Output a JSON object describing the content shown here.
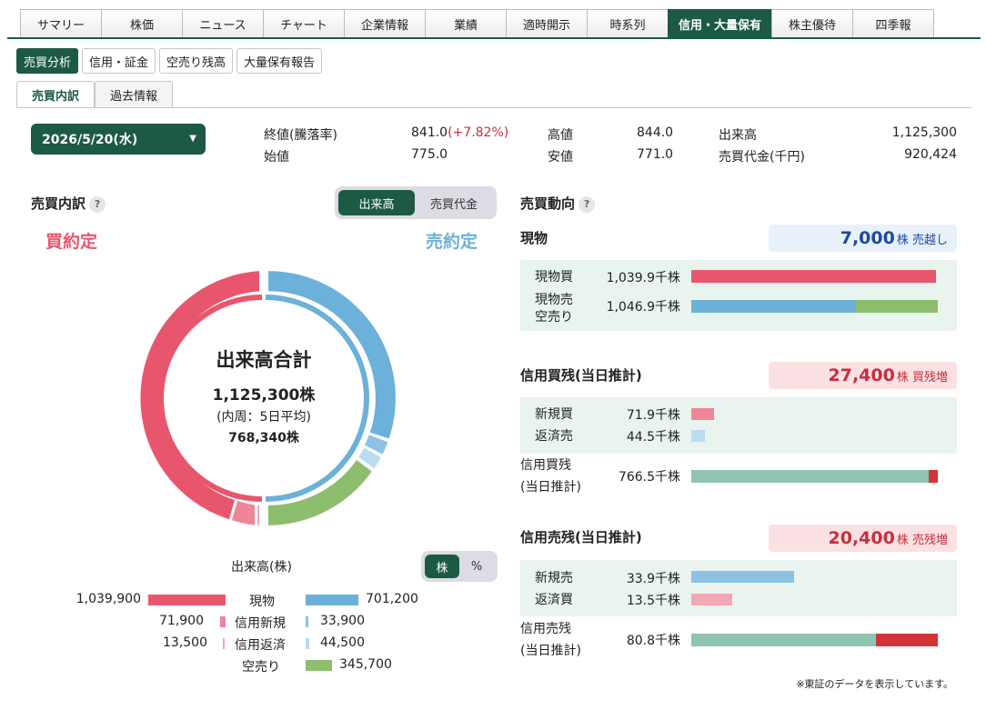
{
  "top_tabs": [
    "サマリー",
    "株価",
    "ニュース",
    "チャート",
    "企業情報",
    "業績",
    "適時開示",
    "時系列",
    "信用・大量保有",
    "株主優待",
    "四季報"
  ],
  "sub_tabs": [
    "売買分析",
    "信用・証金",
    "空売り残高",
    "大量保有報告"
  ],
  "third_tabs": [
    "売買内訳",
    "過去情報"
  ],
  "date": "2026/5/20(水)",
  "prices": {
    "close_label": "終値(騰落率)",
    "close_value": "841.0",
    "close_change": "(+7.82%)",
    "open_label": "始値",
    "open_value": "775.0",
    "high_label": "高値",
    "high_value": "844.0",
    "low_label": "安値",
    "low_value": "771.0",
    "volume_label": "出来高",
    "volume_value": "1,125,300",
    "turnover_label": "売買代金(千円)",
    "turnover_value": "920,424"
  },
  "breakdown": {
    "title": "売買内訳",
    "help": "?",
    "toggle": [
      "出来高",
      "売買代金"
    ],
    "buy_label": "買約定",
    "sell_label": "売約定",
    "center_title": "出来高合計",
    "center_total": "1,125,300株",
    "center_sub": "(内周：5日平均)",
    "center_avg": "768,340株"
  },
  "legend": {
    "title": "出来高(株)",
    "toggle": [
      "株",
      "%"
    ],
    "rows": [
      {
        "label": "現物",
        "buy": "1,039,900",
        "sell": "701,200"
      },
      {
        "label": "信用新規",
        "buy": "71,900",
        "sell": "33,900"
      },
      {
        "label": "信用返済",
        "buy": "13,500",
        "sell": "44,500"
      },
      {
        "label": "空売り",
        "sell": "345,700"
      }
    ]
  },
  "dynamics": {
    "title": "売買動向",
    "help": "?",
    "spot": {
      "title": "現物",
      "badge_value": "7,000",
      "badge_unit": "株",
      "badge_text": "売越し",
      "buy_label": "現物買",
      "buy_value": "1,039.9千株",
      "sell_label_1": "現物売",
      "sell_label_2": "空売り",
      "sell_value": "1,046.9千株"
    },
    "margin_buy": {
      "title": "信用買残(当日推計)",
      "badge_value": "27,400",
      "badge_unit": "株",
      "badge_text": "買残増",
      "new_label": "新規買",
      "new_value": "71.9千株",
      "repay_label": "返済売",
      "repay_value": "44.5千株",
      "balance_label_1": "信用買残",
      "balance_label_2": "(当日推計)",
      "balance_value": "766.5千株"
    },
    "margin_sell": {
      "title": "信用売残(当日推計)",
      "badge_value": "20,400",
      "badge_unit": "株",
      "badge_text": "売残増",
      "new_label": "新規売",
      "new_value": "33.9千株",
      "repay_label": "返済買",
      "repay_value": "13.5千株",
      "balance_label_1": "信用売残",
      "balance_label_2": "(当日推計)",
      "balance_value": "80.8千株"
    }
  },
  "footnote": "※東証のデータを表示しています。",
  "colors": {
    "brand": "#1c5a43",
    "buy": "#e8566e",
    "buy_light": "#f4a7b4",
    "sell": "#6bb1d9",
    "sell_light": "#b9dcef",
    "short": "#8cbe6e",
    "margin_balance": "#8fc4b4",
    "increase": "#d3343a"
  }
}
